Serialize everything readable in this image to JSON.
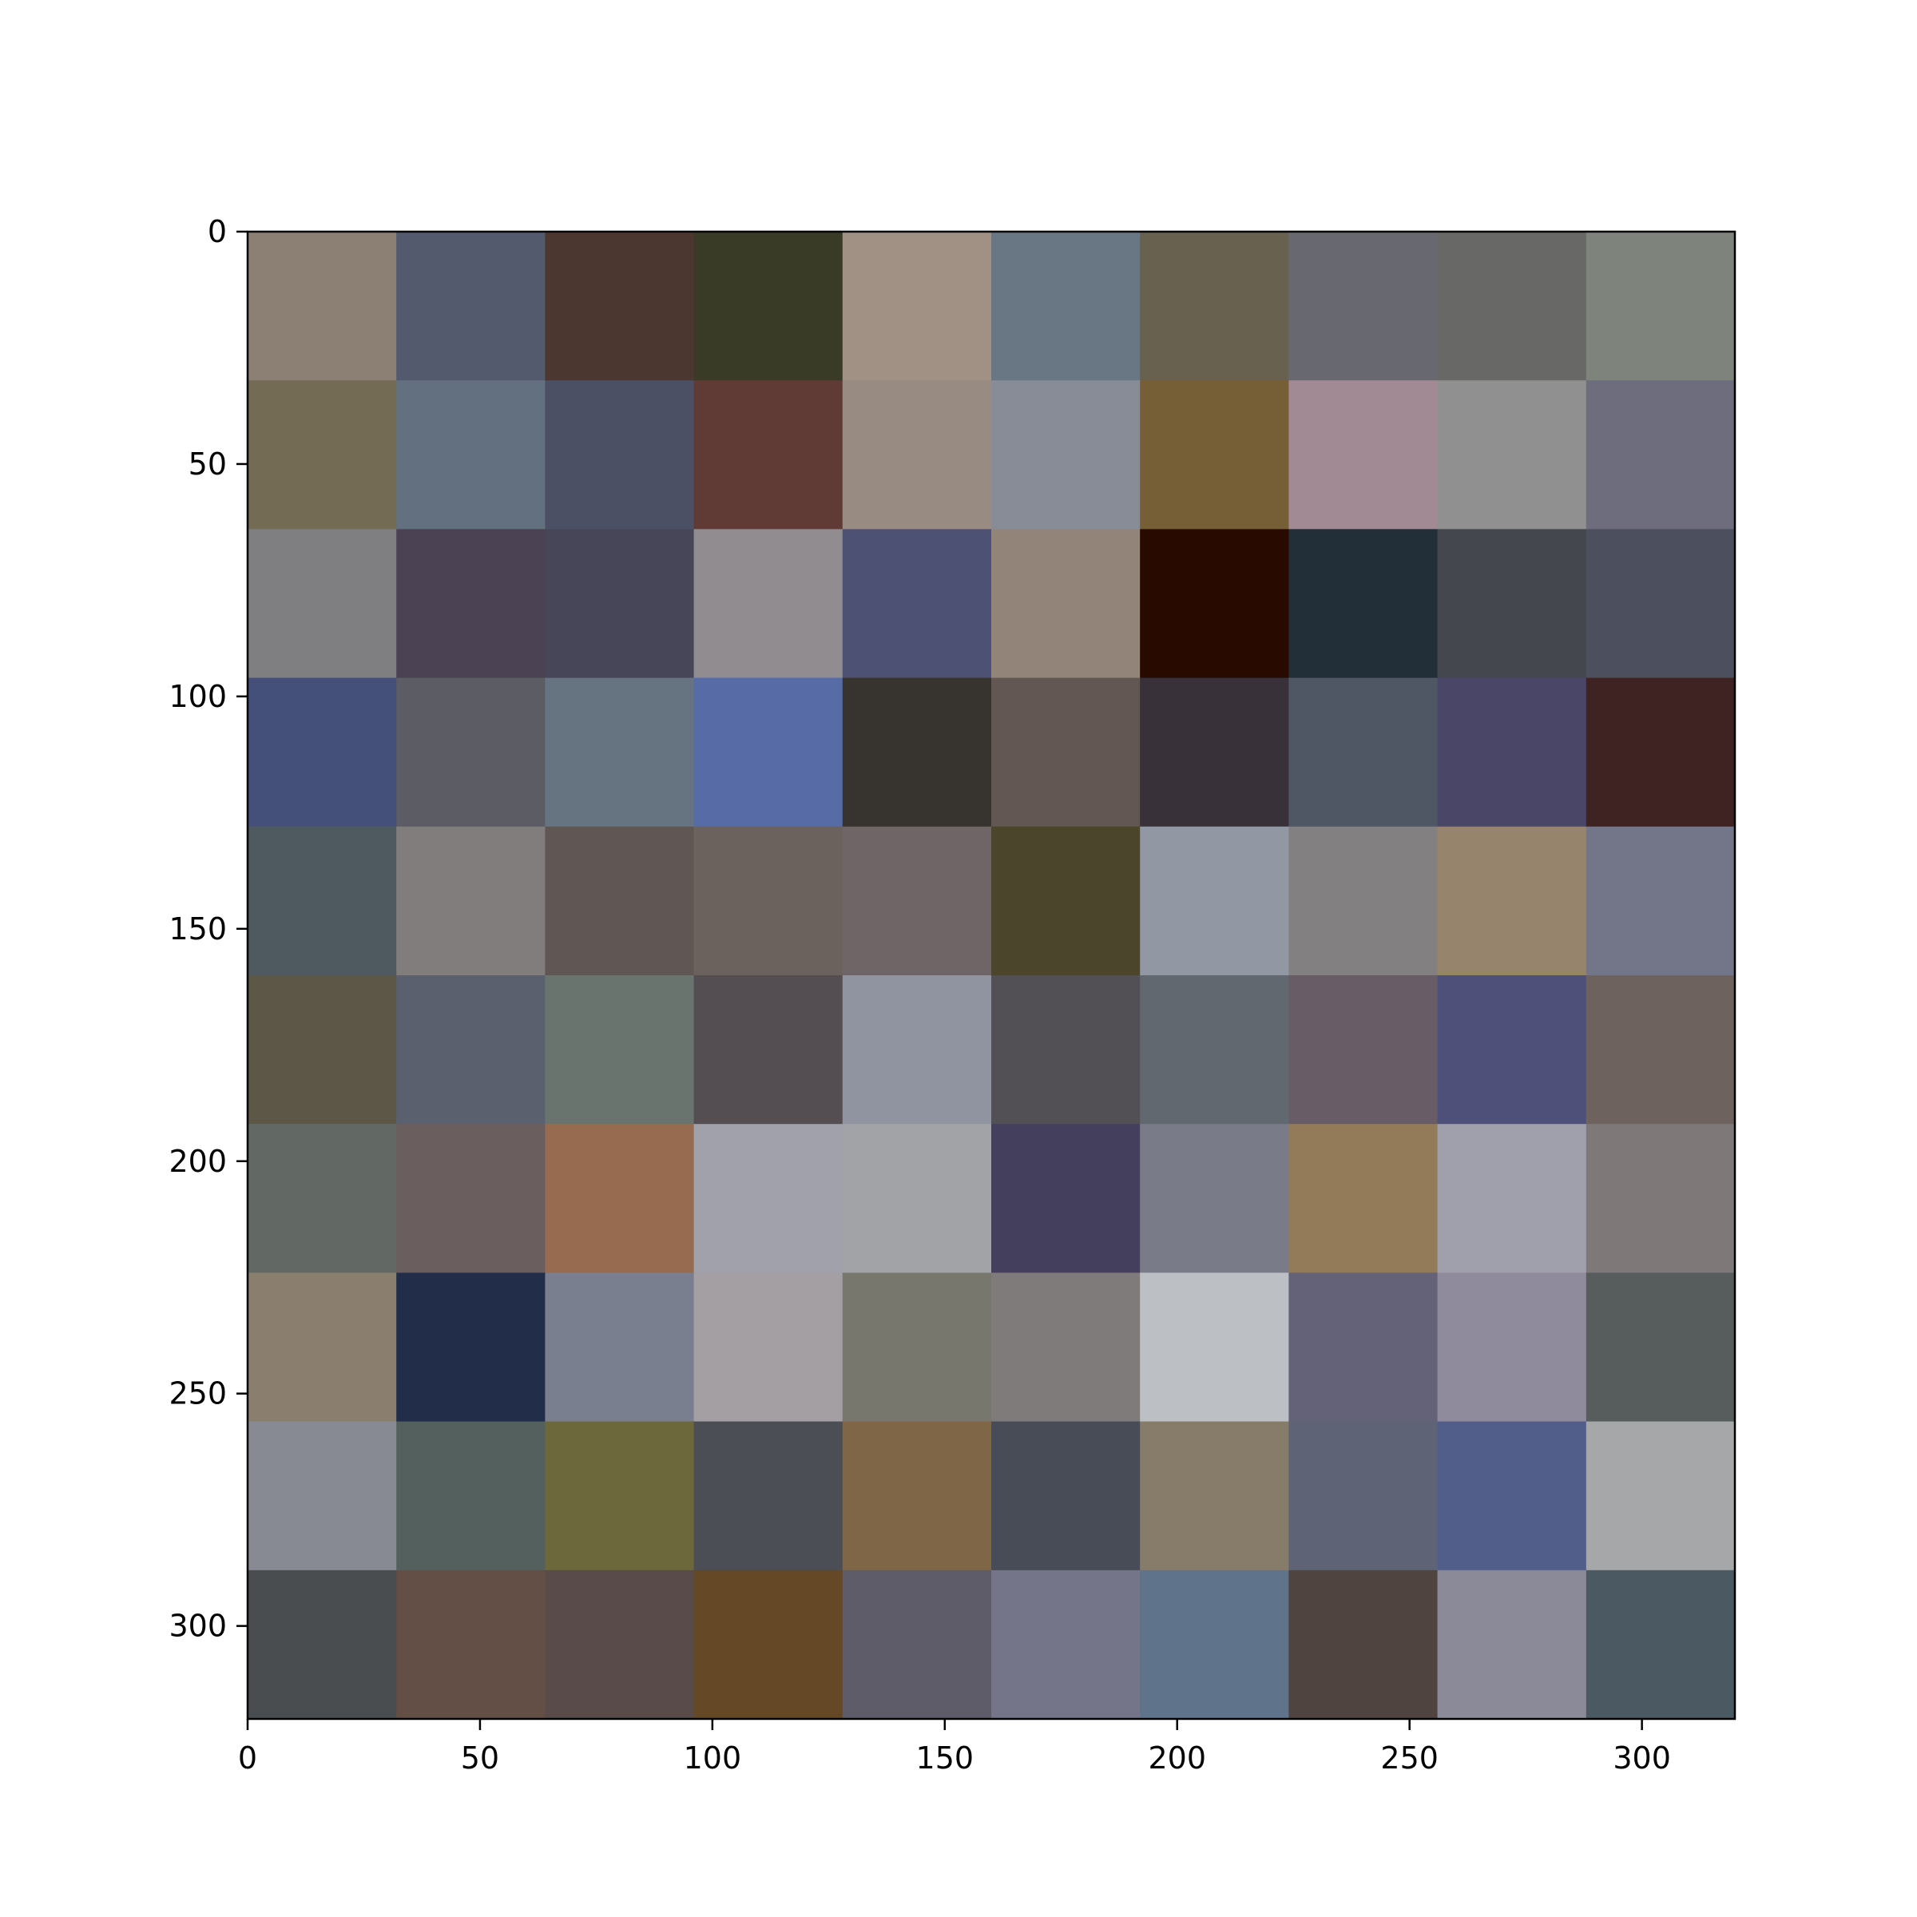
{
  "chart_data": {
    "type": "heatmap",
    "title": "",
    "xlabel": "",
    "ylabel": "",
    "grid": false,
    "xlim": [
      0,
      320
    ],
    "ylim": [
      320,
      0
    ],
    "cell_size": 32,
    "x_ticks": [
      0,
      50,
      100,
      150,
      200,
      250,
      300
    ],
    "y_ticks": [
      0,
      50,
      100,
      150,
      200,
      250,
      300
    ],
    "x_tick_labels": [
      "0",
      "50",
      "100",
      "150",
      "200",
      "250",
      "300"
    ],
    "y_tick_labels": [
      "0",
      "50",
      "100",
      "150",
      "200",
      "250",
      "300"
    ],
    "cells": [
      [
        "#8c7f73",
        "#545a6d",
        "#4c3730",
        "#393b27",
        "#a19184",
        "#697784",
        "#686150",
        "#686870",
        "#686966",
        "#7e847b"
      ],
      [
        "#746b55",
        "#63707f",
        "#4b5064",
        "#603a35",
        "#978b82",
        "#888c96",
        "#765e37",
        "#a28a95",
        "#909090",
        "#6d6d7d"
      ],
      [
        "#7f7f81",
        "#4b4253",
        "#474659",
        "#908c8f",
        "#4d5275",
        "#928479",
        "#280a00",
        "#222f38",
        "#45474e",
        "#4c4f5e"
      ],
      [
        "#44507a",
        "#5b5c64",
        "#667481",
        "#576ca7",
        "#37342f",
        "#625752",
        "#393139",
        "#4f5664",
        "#494667",
        "#3f2222"
      ],
      [
        "#4e5960",
        "#817d7d",
        "#605653",
        "#6c625d",
        "#706566",
        "#4a452b",
        "#9297a4",
        "#828081",
        "#97846d",
        "#737588"
      ],
      [
        "#5c5747",
        "#5b606f",
        "#69746f",
        "#544e53",
        "#9094a1",
        "#535055",
        "#616870",
        "#685d66",
        "#4f507a",
        "#6e625f"
      ],
      [
        "#626964",
        "#6b5e5e",
        "#976b4f",
        "#a0a1aa",
        "#a1a3a6",
        "#433f5c",
        "#7a7b89",
        "#937a58",
        "#a09fac",
        "#7e7978"
      ],
      [
        "#8a7e6e",
        "#222d49",
        "#7a7f8f",
        "#a49fa2",
        "#77776d",
        "#807b7b",
        "#bcbfc3",
        "#646278",
        "#8f8a9c",
        "#575c5d"
      ],
      [
        "#888a93",
        "#53605e",
        "#6d673c",
        "#4b4e55",
        "#7e6646",
        "#484c56",
        "#877c69",
        "#5e6476",
        "#525e8a",
        "#a6a7a9"
      ],
      [
        "#4a4d50",
        "#634f45",
        "#594b4a",
        "#654825",
        "#5e5c68",
        "#747589",
        "#5f738b",
        "#4f4440",
        "#8b8a98",
        "#4b5a62"
      ]
    ]
  }
}
